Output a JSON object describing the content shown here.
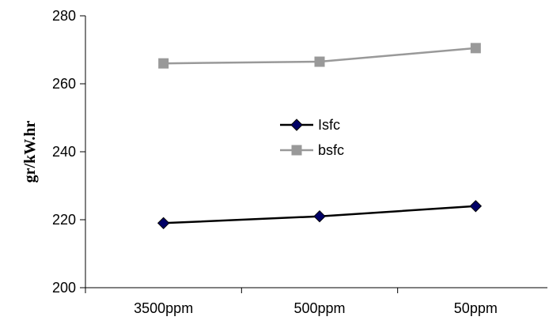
{
  "chart_data": {
    "type": "line",
    "title": "",
    "xlabel": "",
    "ylabel": "gr/kW.hr",
    "categories": [
      "3500ppm",
      "500ppm",
      "50ppm"
    ],
    "ylim": [
      200,
      280
    ],
    "yticks": [
      200,
      220,
      240,
      260,
      280
    ],
    "grid": false,
    "legend_position": "center",
    "series": [
      {
        "name": "Isfc",
        "values": [
          219,
          221,
          224
        ],
        "color": "#000000",
        "marker": "diamond",
        "marker_color": "#000066"
      },
      {
        "name": "bsfc",
        "values": [
          266,
          266.5,
          270.5
        ],
        "color": "#999999",
        "marker": "square",
        "marker_color": "#999999"
      }
    ]
  }
}
